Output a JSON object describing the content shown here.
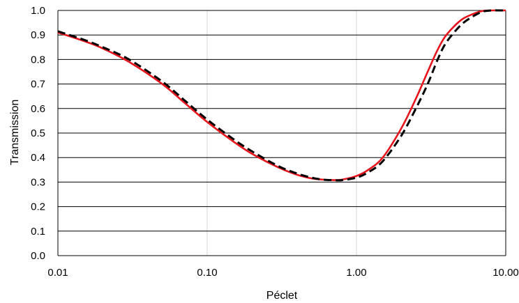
{
  "chart_data": {
    "type": "line",
    "title": "",
    "xlabel": "Péclet",
    "ylabel": "Transmission",
    "x_scale": "log",
    "xlim": [
      0.01,
      10
    ],
    "ylim": [
      0,
      1
    ],
    "grid": true,
    "legend": "none",
    "x_ticks": [
      {
        "value": 0.01,
        "label": "0.01"
      },
      {
        "value": 0.1,
        "label": "0.10"
      },
      {
        "value": 1,
        "label": "1.00"
      },
      {
        "value": 10,
        "label": "10.00"
      }
    ],
    "y_ticks": [
      {
        "value": 0.0,
        "label": "0.0"
      },
      {
        "value": 0.1,
        "label": "0.1"
      },
      {
        "value": 0.2,
        "label": "0.2"
      },
      {
        "value": 0.3,
        "label": "0.3"
      },
      {
        "value": 0.4,
        "label": "0.4"
      },
      {
        "value": 0.5,
        "label": "0.5"
      },
      {
        "value": 0.6,
        "label": "0.6"
      },
      {
        "value": 0.7,
        "label": "0.7"
      },
      {
        "value": 0.8,
        "label": "0.8"
      },
      {
        "value": 0.9,
        "label": "0.9"
      },
      {
        "value": 1.0,
        "label": "1.0"
      }
    ],
    "series": [
      {
        "color": "#e8141b",
        "style": "solid",
        "x": [
          0.01,
          0.015,
          0.02,
          0.03,
          0.05,
          0.07,
          0.1,
          0.15,
          0.2,
          0.3,
          0.4,
          0.5,
          0.6,
          0.7,
          0.8,
          1.0,
          1.2,
          1.5,
          2.0,
          2.5,
          3.0,
          3.5,
          4.0,
          5.0,
          6.0,
          7.0,
          8.0,
          10.0
        ],
        "y": [
          0.91,
          0.875,
          0.845,
          0.79,
          0.7,
          0.625,
          0.545,
          0.465,
          0.415,
          0.36,
          0.33,
          0.315,
          0.31,
          0.308,
          0.31,
          0.325,
          0.35,
          0.4,
          0.52,
          0.64,
          0.75,
          0.84,
          0.9,
          0.96,
          0.985,
          0.998,
          1.0,
          1.0
        ]
      },
      {
        "color": "#000000",
        "style": "dashed",
        "x": [
          0.01,
          0.015,
          0.02,
          0.03,
          0.05,
          0.07,
          0.1,
          0.15,
          0.2,
          0.3,
          0.4,
          0.5,
          0.6,
          0.7,
          0.8,
          1.0,
          1.2,
          1.5,
          2.0,
          2.5,
          3.0,
          3.5,
          4.0,
          5.0,
          6.0,
          7.0,
          8.0,
          10.0
        ],
        "y": [
          0.915,
          0.88,
          0.85,
          0.8,
          0.71,
          0.635,
          0.555,
          0.475,
          0.425,
          0.365,
          0.335,
          0.318,
          0.31,
          0.308,
          0.308,
          0.318,
          0.34,
          0.385,
          0.49,
          0.6,
          0.7,
          0.8,
          0.87,
          0.94,
          0.975,
          0.995,
          1.0,
          1.0
        ]
      }
    ]
  }
}
